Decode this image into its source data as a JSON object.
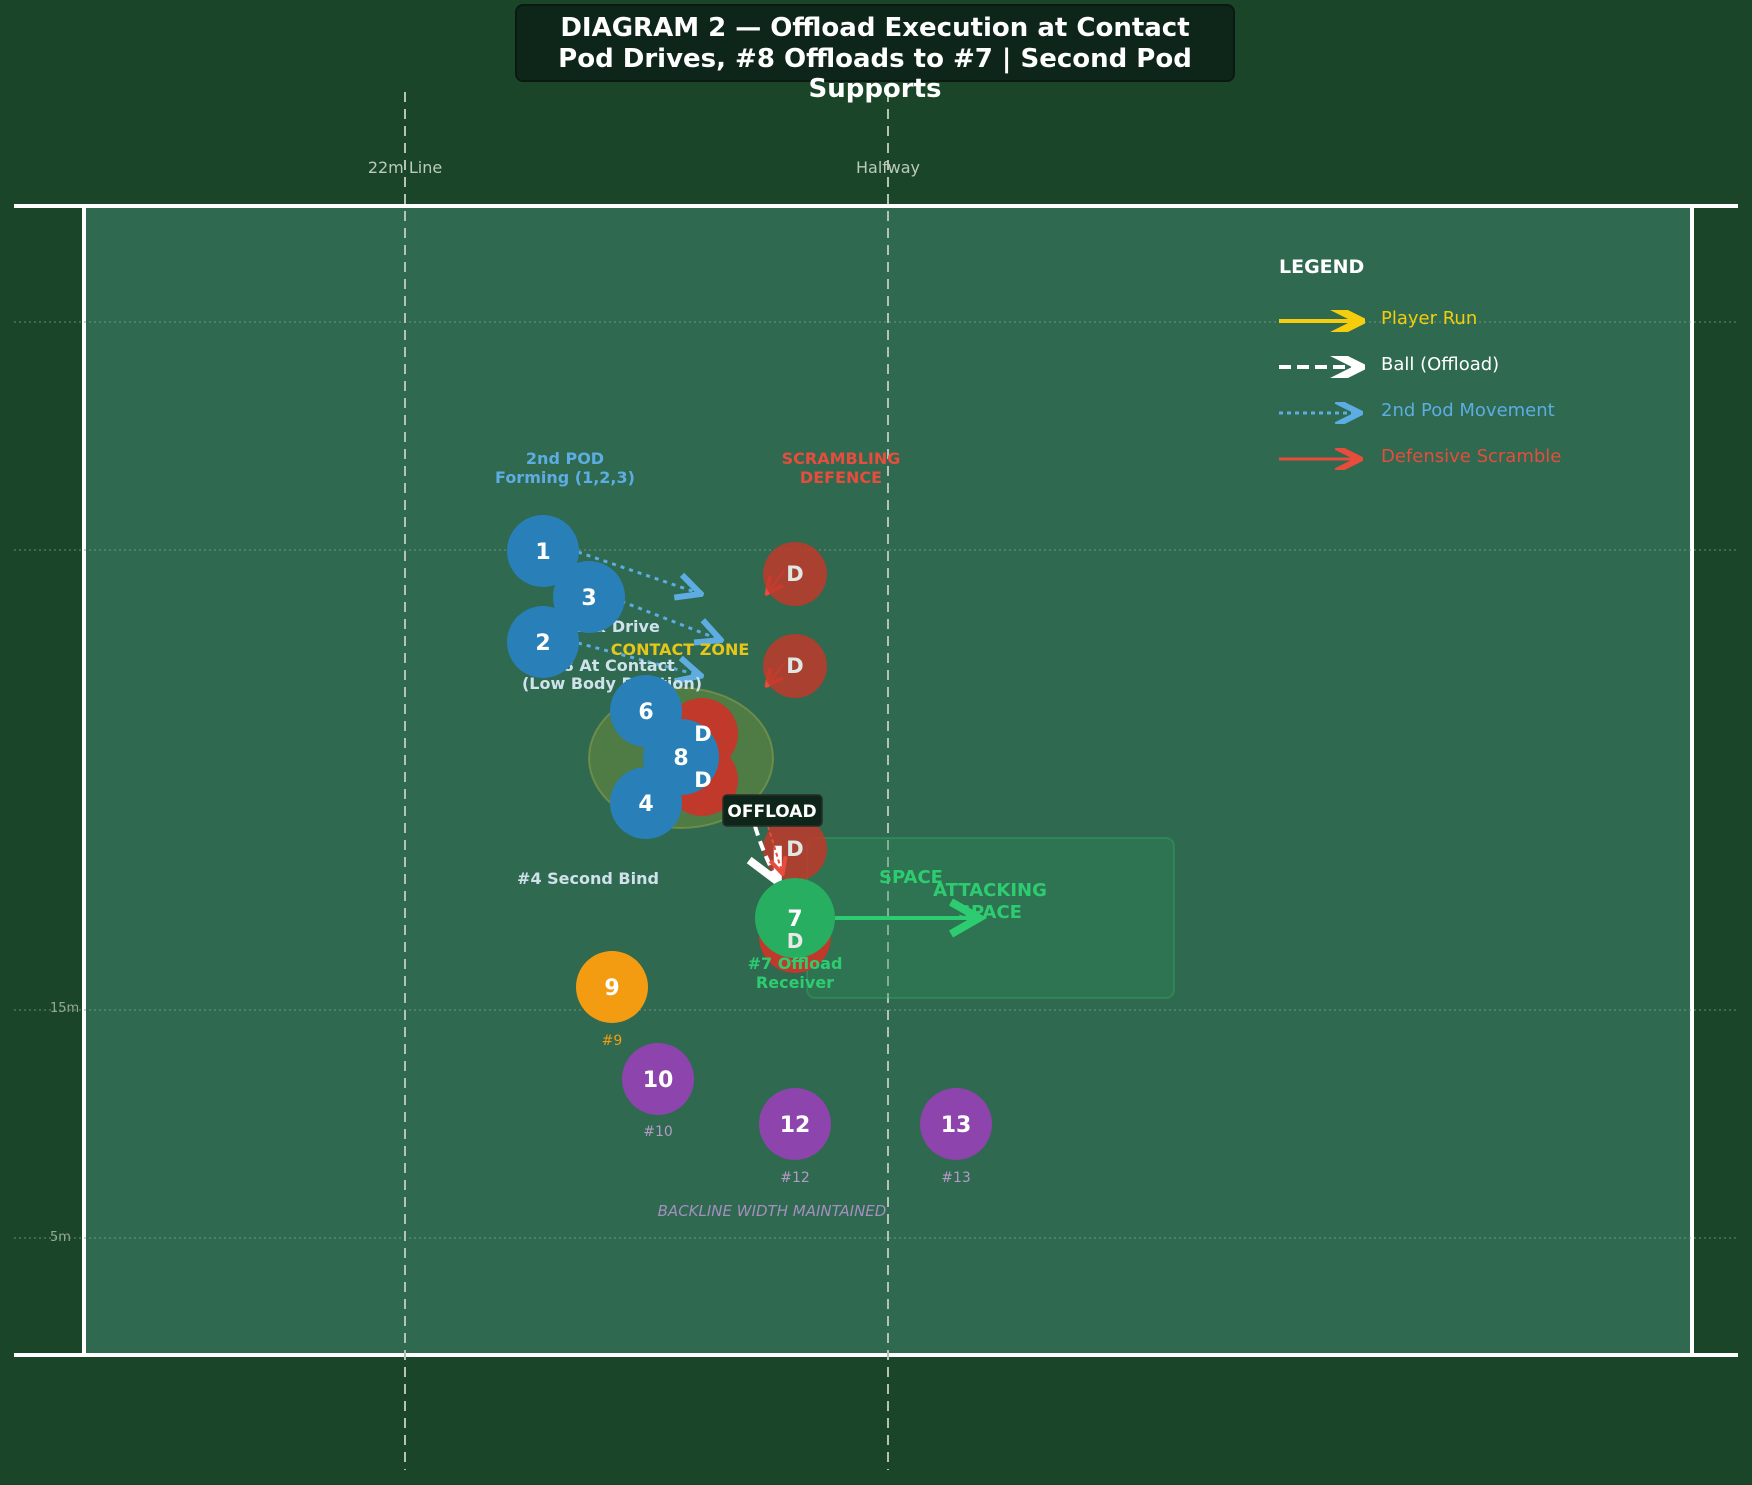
{
  "title": {
    "line1": "DIAGRAM 2 — Offload Execution at Contact",
    "line2": "Pod Drives, #8 Offloads to #7 | Second Pod Supports"
  },
  "field_lines": {
    "line_22m": "22m Line",
    "halfway": "Halfway",
    "mark_15m": "15m",
    "mark_5m": "5m"
  },
  "legend": {
    "title": "LEGEND",
    "items": [
      {
        "label": "Player Run",
        "color": "#f5cd0c",
        "style": "solid"
      },
      {
        "label": "Ball (Offload)",
        "color": "#ffffff",
        "style": "dashed"
      },
      {
        "label": "2nd Pod Movement",
        "color": "#5dade2",
        "style": "dotted"
      },
      {
        "label": "Defensive Scramble",
        "color": "#e74c3c",
        "style": "solid"
      }
    ]
  },
  "colors": {
    "pod": "#2980b9",
    "receiver": "#27ae60",
    "nine": "#f39c12",
    "backline": "#8e44ad",
    "defender": "#c0392b",
    "pitch": "#2e6950",
    "background": "#1b4528"
  },
  "annotations": {
    "second_pod": [
      "2nd POD",
      "Forming (1,2,3)"
    ],
    "scrambling": [
      "SCRAMBLING",
      "DEFENCE"
    ],
    "bind_drive": "#6 Bind & Drive",
    "contact_zone": "CONTACT ZONE",
    "at_contact": [
      "#8 At Contact",
      "(Low Body Position)"
    ],
    "offload": "OFFLOAD",
    "second_bind": "#4 Second Bind",
    "space": "SPACE",
    "attacking_space": [
      "ATTACKING",
      "SPACE"
    ],
    "receiver": [
      "#7 Offload",
      "Receiver"
    ],
    "backline_width": "BACKLINE WIDTH MAINTAINED"
  },
  "players": {
    "pod": [
      "1",
      "3",
      "2",
      "6",
      "8",
      "4"
    ],
    "receiver": "7",
    "nine": "9",
    "backline": [
      "10",
      "12",
      "13"
    ],
    "defender_mark": "D"
  },
  "player_captions": {
    "nine": "#9",
    "ten": "#10",
    "twelve": "#12",
    "thirteen": "#13"
  }
}
